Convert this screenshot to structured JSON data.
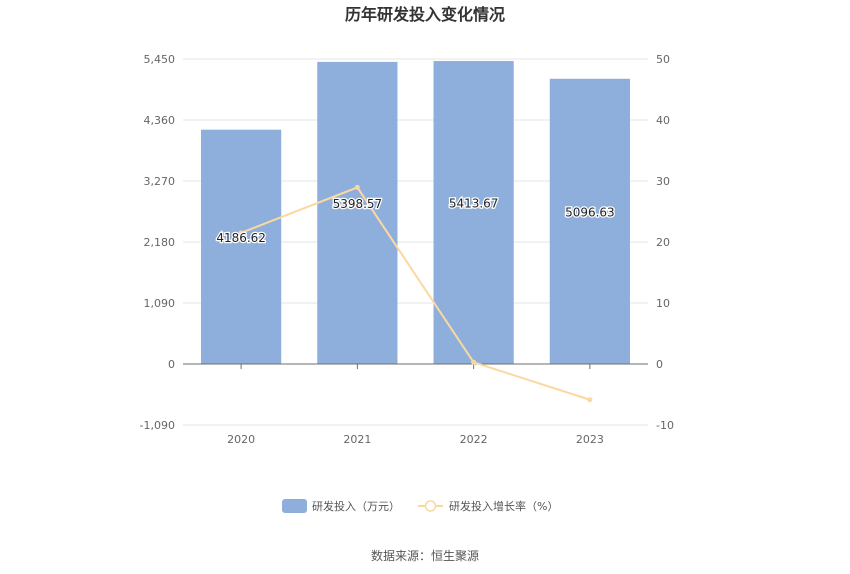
{
  "chart_data": {
    "type": "bar",
    "title": "历年研发投入变化情况",
    "categories": [
      "2020",
      "2021",
      "2022",
      "2023"
    ],
    "series": [
      {
        "name": "研发投入（万元）",
        "type": "bar",
        "axis": "left",
        "color": "#8eaedb",
        "values": [
          4186.62,
          5398.57,
          5413.67,
          5096.63
        ],
        "labels": [
          "4186.62",
          "5398.57",
          "5413.67",
          "5096.63"
        ]
      },
      {
        "name": "研发投入增长率（%）",
        "type": "line",
        "axis": "right",
        "color": "#fad9a0",
        "values": [
          21.5,
          28.95,
          0.28,
          -5.86
        ]
      }
    ],
    "y_left": {
      "min": -1090,
      "max": 5450,
      "ticks": [
        -1090,
        0,
        1090,
        2180,
        3270,
        4360,
        5450
      ],
      "tick_labels": [
        "-1,090",
        "0",
        "1,090",
        "2,180",
        "3,270",
        "4,360",
        "5,450"
      ]
    },
    "y_right": {
      "min": -10,
      "max": 50,
      "ticks": [
        -10,
        0,
        10,
        20,
        30,
        40,
        50
      ],
      "tick_labels": [
        "-10",
        "0",
        "10",
        "20",
        "30",
        "40",
        "50"
      ]
    },
    "grid": true,
    "legend_position": "bottom"
  },
  "source": "数据来源：恒生聚源"
}
